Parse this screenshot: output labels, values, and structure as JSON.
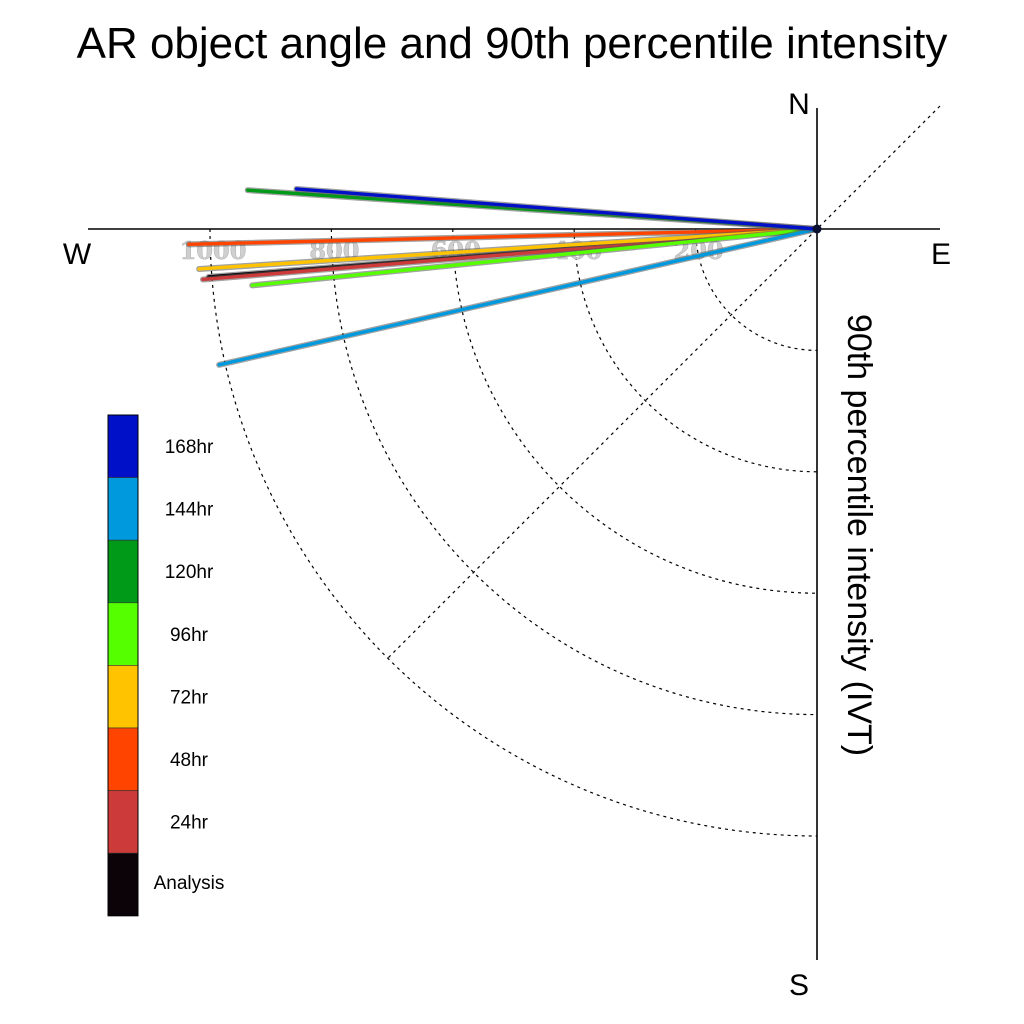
{
  "chart_data": {
    "type": "polar-vector",
    "title": "AR object angle and 90th percentile intensity",
    "radial_label": "90th percentile intensity (IVT)",
    "compass": {
      "north": "N",
      "south": "S",
      "east": "E",
      "west": "W"
    },
    "radial_ticks": [
      {
        "value": 200,
        "label": "200"
      },
      {
        "value": 400,
        "label": "400"
      },
      {
        "value": 600,
        "label": "600"
      },
      {
        "value": 800,
        "label": "800"
      },
      {
        "value": 1000,
        "label": "1000"
      }
    ],
    "rlim": [
      0,
      1000
    ],
    "angle_unit": "degrees clockwise from north",
    "legend_position": "left",
    "series": [
      {
        "name": "168hr",
        "color": "#0010c8",
        "angle": 274.4,
        "intensity": 860
      },
      {
        "name": "144hr",
        "color": "#0099dd",
        "angle": 257.2,
        "intensity": 1010
      },
      {
        "name": "120hr",
        "color": "#009a18",
        "angle": 273.9,
        "intensity": 940
      },
      {
        "name": "96hr",
        "color": "#55ff00",
        "angle": 264.3,
        "intensity": 935
      },
      {
        "name": "72hr",
        "color": "#ffc300",
        "angle": 266.3,
        "intensity": 1020
      },
      {
        "name": "48hr",
        "color": "#ff4400",
        "angle": 268.6,
        "intensity": 1035
      },
      {
        "name": "24hr",
        "color": "#cc3a3a",
        "angle": 265.3,
        "intensity": 1015
      },
      {
        "name": "Analysis",
        "color": "#0b0308",
        "angle": 265.5,
        "intensity": 1005
      }
    ]
  }
}
